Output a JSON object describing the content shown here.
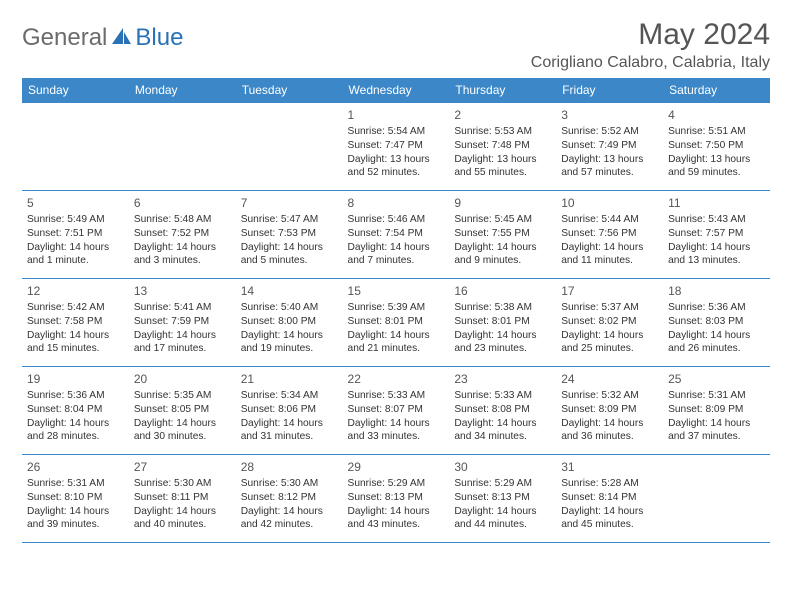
{
  "logo": {
    "text1": "General",
    "text2": "Blue"
  },
  "title": "May 2024",
  "location": "Corigliano Calabro, Calabria, Italy",
  "colors": {
    "header_bg": "#3b87c8",
    "header_text": "#ffffff",
    "border": "#3b87c8",
    "logo_gray": "#6b6b6b",
    "logo_blue": "#2a72b5"
  },
  "weekdays": [
    "Sunday",
    "Monday",
    "Tuesday",
    "Wednesday",
    "Thursday",
    "Friday",
    "Saturday"
  ],
  "weeks": [
    [
      null,
      null,
      null,
      {
        "n": "1",
        "sr": "Sunrise: 5:54 AM",
        "ss": "Sunset: 7:47 PM",
        "d1": "Daylight: 13 hours",
        "d2": "and 52 minutes."
      },
      {
        "n": "2",
        "sr": "Sunrise: 5:53 AM",
        "ss": "Sunset: 7:48 PM",
        "d1": "Daylight: 13 hours",
        "d2": "and 55 minutes."
      },
      {
        "n": "3",
        "sr": "Sunrise: 5:52 AM",
        "ss": "Sunset: 7:49 PM",
        "d1": "Daylight: 13 hours",
        "d2": "and 57 minutes."
      },
      {
        "n": "4",
        "sr": "Sunrise: 5:51 AM",
        "ss": "Sunset: 7:50 PM",
        "d1": "Daylight: 13 hours",
        "d2": "and 59 minutes."
      }
    ],
    [
      {
        "n": "5",
        "sr": "Sunrise: 5:49 AM",
        "ss": "Sunset: 7:51 PM",
        "d1": "Daylight: 14 hours",
        "d2": "and 1 minute."
      },
      {
        "n": "6",
        "sr": "Sunrise: 5:48 AM",
        "ss": "Sunset: 7:52 PM",
        "d1": "Daylight: 14 hours",
        "d2": "and 3 minutes."
      },
      {
        "n": "7",
        "sr": "Sunrise: 5:47 AM",
        "ss": "Sunset: 7:53 PM",
        "d1": "Daylight: 14 hours",
        "d2": "and 5 minutes."
      },
      {
        "n": "8",
        "sr": "Sunrise: 5:46 AM",
        "ss": "Sunset: 7:54 PM",
        "d1": "Daylight: 14 hours",
        "d2": "and 7 minutes."
      },
      {
        "n": "9",
        "sr": "Sunrise: 5:45 AM",
        "ss": "Sunset: 7:55 PM",
        "d1": "Daylight: 14 hours",
        "d2": "and 9 minutes."
      },
      {
        "n": "10",
        "sr": "Sunrise: 5:44 AM",
        "ss": "Sunset: 7:56 PM",
        "d1": "Daylight: 14 hours",
        "d2": "and 11 minutes."
      },
      {
        "n": "11",
        "sr": "Sunrise: 5:43 AM",
        "ss": "Sunset: 7:57 PM",
        "d1": "Daylight: 14 hours",
        "d2": "and 13 minutes."
      }
    ],
    [
      {
        "n": "12",
        "sr": "Sunrise: 5:42 AM",
        "ss": "Sunset: 7:58 PM",
        "d1": "Daylight: 14 hours",
        "d2": "and 15 minutes."
      },
      {
        "n": "13",
        "sr": "Sunrise: 5:41 AM",
        "ss": "Sunset: 7:59 PM",
        "d1": "Daylight: 14 hours",
        "d2": "and 17 minutes."
      },
      {
        "n": "14",
        "sr": "Sunrise: 5:40 AM",
        "ss": "Sunset: 8:00 PM",
        "d1": "Daylight: 14 hours",
        "d2": "and 19 minutes."
      },
      {
        "n": "15",
        "sr": "Sunrise: 5:39 AM",
        "ss": "Sunset: 8:01 PM",
        "d1": "Daylight: 14 hours",
        "d2": "and 21 minutes."
      },
      {
        "n": "16",
        "sr": "Sunrise: 5:38 AM",
        "ss": "Sunset: 8:01 PM",
        "d1": "Daylight: 14 hours",
        "d2": "and 23 minutes."
      },
      {
        "n": "17",
        "sr": "Sunrise: 5:37 AM",
        "ss": "Sunset: 8:02 PM",
        "d1": "Daylight: 14 hours",
        "d2": "and 25 minutes."
      },
      {
        "n": "18",
        "sr": "Sunrise: 5:36 AM",
        "ss": "Sunset: 8:03 PM",
        "d1": "Daylight: 14 hours",
        "d2": "and 26 minutes."
      }
    ],
    [
      {
        "n": "19",
        "sr": "Sunrise: 5:36 AM",
        "ss": "Sunset: 8:04 PM",
        "d1": "Daylight: 14 hours",
        "d2": "and 28 minutes."
      },
      {
        "n": "20",
        "sr": "Sunrise: 5:35 AM",
        "ss": "Sunset: 8:05 PM",
        "d1": "Daylight: 14 hours",
        "d2": "and 30 minutes."
      },
      {
        "n": "21",
        "sr": "Sunrise: 5:34 AM",
        "ss": "Sunset: 8:06 PM",
        "d1": "Daylight: 14 hours",
        "d2": "and 31 minutes."
      },
      {
        "n": "22",
        "sr": "Sunrise: 5:33 AM",
        "ss": "Sunset: 8:07 PM",
        "d1": "Daylight: 14 hours",
        "d2": "and 33 minutes."
      },
      {
        "n": "23",
        "sr": "Sunrise: 5:33 AM",
        "ss": "Sunset: 8:08 PM",
        "d1": "Daylight: 14 hours",
        "d2": "and 34 minutes."
      },
      {
        "n": "24",
        "sr": "Sunrise: 5:32 AM",
        "ss": "Sunset: 8:09 PM",
        "d1": "Daylight: 14 hours",
        "d2": "and 36 minutes."
      },
      {
        "n": "25",
        "sr": "Sunrise: 5:31 AM",
        "ss": "Sunset: 8:09 PM",
        "d1": "Daylight: 14 hours",
        "d2": "and 37 minutes."
      }
    ],
    [
      {
        "n": "26",
        "sr": "Sunrise: 5:31 AM",
        "ss": "Sunset: 8:10 PM",
        "d1": "Daylight: 14 hours",
        "d2": "and 39 minutes."
      },
      {
        "n": "27",
        "sr": "Sunrise: 5:30 AM",
        "ss": "Sunset: 8:11 PM",
        "d1": "Daylight: 14 hours",
        "d2": "and 40 minutes."
      },
      {
        "n": "28",
        "sr": "Sunrise: 5:30 AM",
        "ss": "Sunset: 8:12 PM",
        "d1": "Daylight: 14 hours",
        "d2": "and 42 minutes."
      },
      {
        "n": "29",
        "sr": "Sunrise: 5:29 AM",
        "ss": "Sunset: 8:13 PM",
        "d1": "Daylight: 14 hours",
        "d2": "and 43 minutes."
      },
      {
        "n": "30",
        "sr": "Sunrise: 5:29 AM",
        "ss": "Sunset: 8:13 PM",
        "d1": "Daylight: 14 hours",
        "d2": "and 44 minutes."
      },
      {
        "n": "31",
        "sr": "Sunrise: 5:28 AM",
        "ss": "Sunset: 8:14 PM",
        "d1": "Daylight: 14 hours",
        "d2": "and 45 minutes."
      },
      null
    ]
  ]
}
